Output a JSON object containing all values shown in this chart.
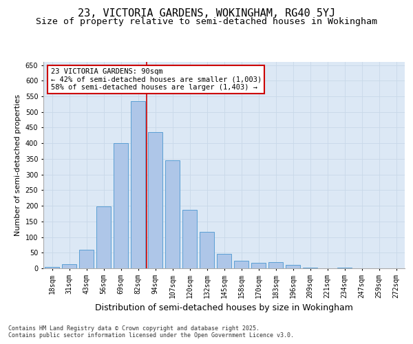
{
  "title1": "23, VICTORIA GARDENS, WOKINGHAM, RG40 5YJ",
  "title2": "Size of property relative to semi-detached houses in Wokingham",
  "xlabel": "Distribution of semi-detached houses by size in Wokingham",
  "ylabel": "Number of semi-detached properties",
  "categories": [
    "18sqm",
    "31sqm",
    "43sqm",
    "56sqm",
    "69sqm",
    "82sqm",
    "94sqm",
    "107sqm",
    "120sqm",
    "132sqm",
    "145sqm",
    "158sqm",
    "170sqm",
    "183sqm",
    "196sqm",
    "209sqm",
    "221sqm",
    "234sqm",
    "247sqm",
    "259sqm",
    "272sqm"
  ],
  "values": [
    5,
    13,
    60,
    197,
    400,
    535,
    435,
    345,
    188,
    117,
    46,
    25,
    18,
    20,
    12,
    3,
    1,
    2,
    1,
    1,
    1
  ],
  "bar_color": "#aec6e8",
  "bar_edge_color": "#5a9fd4",
  "bar_linewidth": 0.7,
  "vline_index": 5.5,
  "vline_color": "#cc0000",
  "annotation_text": "23 VICTORIA GARDENS: 90sqm\n← 42% of semi-detached houses are smaller (1,003)\n58% of semi-detached houses are larger (1,403) →",
  "annotation_box_facecolor": "#ffffff",
  "annotation_box_edgecolor": "#cc0000",
  "ylim": [
    0,
    660
  ],
  "yticks": [
    0,
    50,
    100,
    150,
    200,
    250,
    300,
    350,
    400,
    450,
    500,
    550,
    600,
    650
  ],
  "grid_color": "#c8d8e8",
  "background_color": "#dce8f5",
  "footer_text": "Contains HM Land Registry data © Crown copyright and database right 2025.\nContains public sector information licensed under the Open Government Licence v3.0.",
  "title1_fontsize": 11,
  "title2_fontsize": 9.5,
  "xlabel_fontsize": 9,
  "ylabel_fontsize": 8,
  "tick_fontsize": 7,
  "annotation_fontsize": 7.5,
  "footer_fontsize": 6
}
